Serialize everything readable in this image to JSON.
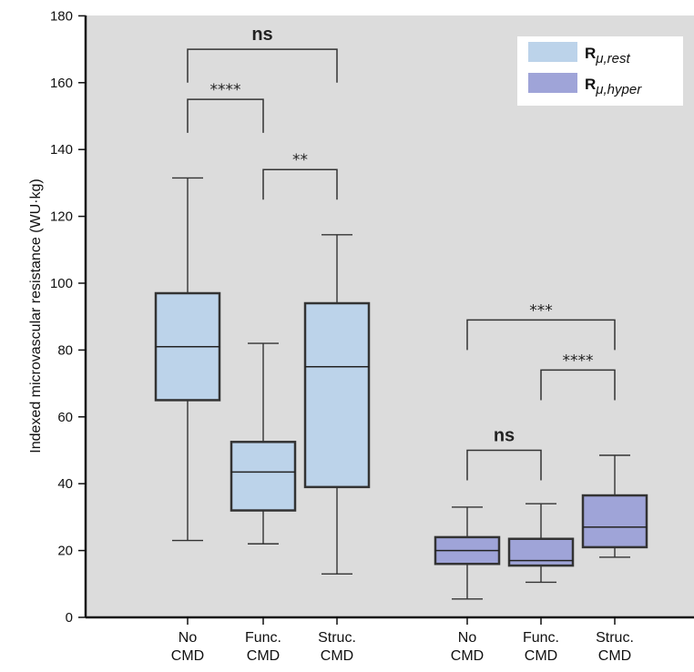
{
  "chart_data": {
    "type": "box",
    "ylabel": "Indexed microvascular resistance (WU·kg)",
    "ylim": [
      0,
      180
    ],
    "yticks": [
      0,
      20,
      40,
      60,
      80,
      100,
      120,
      140,
      160,
      180
    ],
    "background": "#dcdcdc",
    "legend": {
      "placement": "top-right",
      "entries": [
        {
          "R": "R",
          "sub": "μ,rest",
          "color": "#bcd3ea"
        },
        {
          "R": "R",
          "sub": "μ,hyper",
          "color": "#9fa4d8"
        }
      ]
    },
    "boxes": [
      {
        "line1": "No",
        "line2": "CMD",
        "series": 0,
        "min": 23,
        "q1": 65,
        "median": 81,
        "q3": 97,
        "max": 131.5
      },
      {
        "line1": "Func.",
        "line2": "CMD",
        "series": 0,
        "min": 22,
        "q1": 32,
        "median": 43.5,
        "q3": 52.5,
        "max": 82
      },
      {
        "line1": "Struc.",
        "line2": "CMD",
        "series": 0,
        "min": 13,
        "q1": 39,
        "median": 75,
        "q3": 94,
        "max": 114.5
      },
      {
        "line1": "No",
        "line2": "CMD",
        "series": 1,
        "min": 5.5,
        "q1": 16,
        "median": 20,
        "q3": 24,
        "max": 33
      },
      {
        "line1": "Func.",
        "line2": "CMD",
        "series": 1,
        "min": 10.5,
        "q1": 15.5,
        "median": 17,
        "q3": 23.5,
        "max": 34
      },
      {
        "line1": "Struc.",
        "line2": "CMD",
        "series": 1,
        "min": 18,
        "q1": 21,
        "median": 27,
        "q3": 36.5,
        "max": 48.5
      }
    ],
    "comparisons": [
      {
        "from": 0,
        "to": 2,
        "y": 170,
        "drop": 10,
        "label": "ns"
      },
      {
        "from": 0,
        "to": 1,
        "y": 155,
        "drop": 10,
        "label": "****"
      },
      {
        "from": 1,
        "to": 2,
        "y": 134,
        "drop": 9,
        "label": "**"
      },
      {
        "from": 3,
        "to": 5,
        "y": 89,
        "drop": 9,
        "label": "***"
      },
      {
        "from": 4,
        "to": 5,
        "y": 74,
        "drop": 9,
        "label": "****"
      },
      {
        "from": 3,
        "to": 4,
        "y": 50,
        "drop": 9,
        "label": "ns"
      }
    ]
  }
}
